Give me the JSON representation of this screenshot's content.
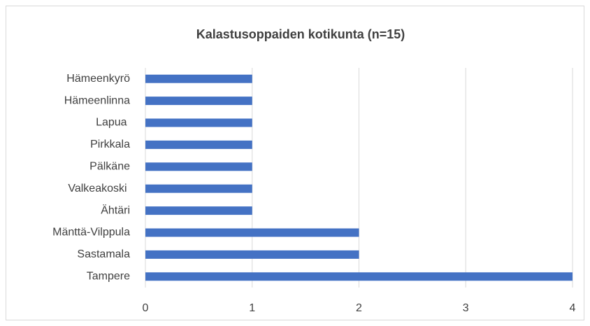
{
  "chart_data": {
    "type": "barh",
    "title": "Kalastusoppaiden kotikunta (n=15)",
    "categories": [
      "Hämeenkyrö",
      "Hämeenlinna",
      "Lapua ",
      "Pirkkala",
      "Pälkäne",
      "Valkeakoski ",
      "Ähtäri",
      "Mänttä-Vilppula",
      "Sastamala",
      "Tampere"
    ],
    "values": [
      1,
      1,
      1,
      1,
      1,
      1,
      1,
      2,
      2,
      4
    ],
    "color": "#4472c4",
    "xlim": [
      0,
      4
    ],
    "xticks": [
      0,
      1,
      2,
      3,
      4
    ],
    "grid": true
  }
}
